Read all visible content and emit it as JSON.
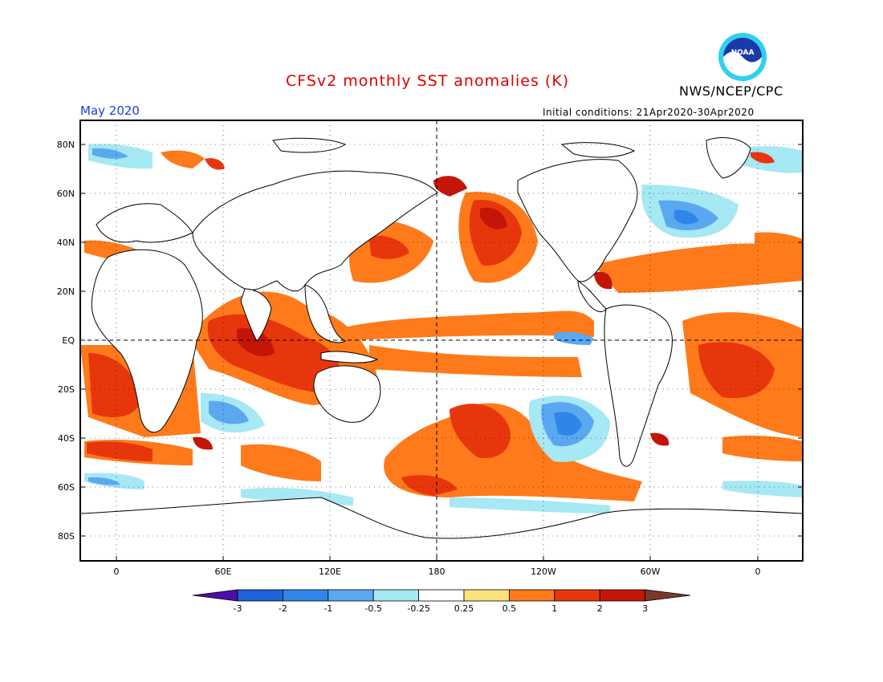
{
  "title": "CFSv2 monthly SST anomalies (K)",
  "agency": "NWS/NCEP/CPC",
  "logo_text": "NOAA",
  "period": "May 2020",
  "initial_conditions": "Initial conditions: 21Apr2020-30Apr2020",
  "colors": {
    "title": "#dd0000",
    "period": "#1e3fdd",
    "cold3": "#4b0fa8",
    "cold2": "#1f64d6",
    "cold1": "#2f86e8",
    "cold05": "#5aa8f0",
    "cold025": "#a6e8f4",
    "neutral": "#ffffff",
    "warm025": "#fce27a",
    "warm05": "#ff7a1a",
    "warm1": "#e8360c",
    "warm2": "#c41608",
    "warm3": "#7a3a2a"
  },
  "lat_labels": [
    "80N",
    "60N",
    "40N",
    "20N",
    "EQ",
    "20S",
    "40S",
    "60S",
    "80S"
  ],
  "lon_labels": [
    "0",
    "60E",
    "120E",
    "180",
    "120W",
    "60W",
    "0"
  ],
  "legend": {
    "ticks": [
      "-3",
      "-2",
      "-1",
      "-0.5",
      "-0.25",
      "0.25",
      "0.5",
      "1",
      "2",
      "3"
    ],
    "bins": [
      {
        "name": "below -3",
        "color": "#4b0fa8"
      },
      {
        "name": "-3 to -2",
        "color": "#1f64d6"
      },
      {
        "name": "-2 to -1",
        "color": "#2f86e8"
      },
      {
        "name": "-1 to -0.5",
        "color": "#5aa8f0"
      },
      {
        "name": "-0.5 to -0.25",
        "color": "#a6e8f4"
      },
      {
        "name": "-0.25 to 0.25",
        "color": "#ffffff"
      },
      {
        "name": "0.25 to 0.5",
        "color": "#fce27a"
      },
      {
        "name": "0.5 to 1",
        "color": "#ff7a1a"
      },
      {
        "name": "1 to 2",
        "color": "#e8360c"
      },
      {
        "name": "2 to 3",
        "color": "#c41608"
      },
      {
        "name": "above 3",
        "color": "#7a3a2a"
      }
    ]
  }
}
